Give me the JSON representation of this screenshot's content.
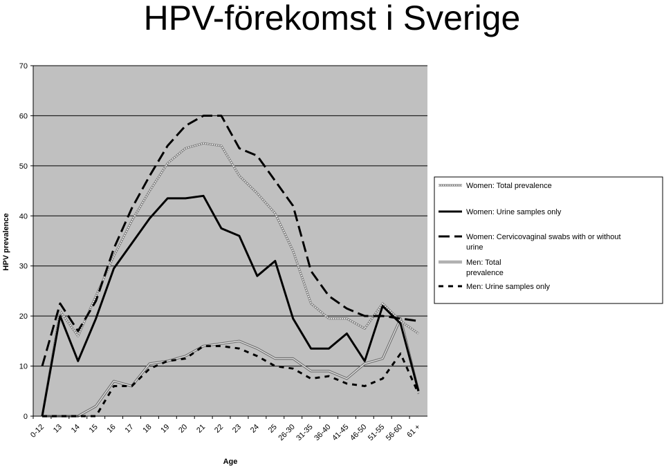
{
  "title": "HPV-förekomst i Sverige",
  "chart_data": {
    "type": "line",
    "xlabel": "Age",
    "ylabel": "HPV prevalence",
    "ylim": [
      0,
      70
    ],
    "yticks": [
      0,
      10,
      20,
      30,
      40,
      50,
      60,
      70
    ],
    "grid": true,
    "legend_position": "right",
    "background": "#c0c0c0",
    "categories": [
      "0-12",
      "13",
      "14",
      "15",
      "16",
      "17",
      "18",
      "19",
      "20",
      "21",
      "22",
      "23",
      "24",
      "25",
      "26-30",
      "31-35",
      "36-40",
      "41-45",
      "46-50",
      "51-55",
      "56-60",
      "61+"
    ],
    "category_labels": [
      "0-12",
      "13",
      "14",
      "15",
      "16",
      "17",
      "18",
      "19",
      "20",
      "21",
      "22",
      "23",
      "24",
      "25",
      "26-30",
      "31-35",
      "36-40",
      "41-45",
      "46-50",
      "51-55",
      "56-60",
      "61 +"
    ],
    "series": [
      {
        "name": "Women: Total prevalence",
        "legend_lines": [
          "Women: Total prevalence"
        ],
        "style": "dotted-white",
        "values": [
          0,
          21,
          16,
          24,
          32,
          39,
          45,
          50.5,
          53.5,
          54.5,
          54,
          48,
          44.5,
          40.5,
          33,
          22.5,
          19.5,
          19.5,
          17.5,
          22.5,
          19,
          16.5
        ]
      },
      {
        "name": "Women: Urine samples only",
        "legend_lines": [
          "Women: Urine samples only"
        ],
        "style": "solid-thick",
        "values": [
          0,
          20,
          11,
          19.5,
          29.5,
          34.5,
          39.5,
          43.5,
          43.5,
          44,
          37.5,
          36,
          28,
          31,
          19.5,
          13.5,
          13.5,
          16.5,
          11,
          22,
          18.5,
          5
        ]
      },
      {
        "name": "Women: Cervicovaginal swabs with or without urine",
        "legend_lines": [
          "Women: Cervicovaginal swabs with or without",
          "urine"
        ],
        "style": "long-dash",
        "values": [
          10,
          22.5,
          17,
          23,
          33.5,
          41.5,
          48,
          54,
          58,
          60,
          60,
          53.5,
          52,
          47,
          42,
          29,
          24,
          21.5,
          20,
          20,
          19.5,
          19
        ]
      },
      {
        "name": "Men: Total prevalence",
        "legend_lines": [
          "Men: Total",
          "prevalence"
        ],
        "style": "double-gray",
        "values": [
          0,
          0,
          0,
          2,
          7,
          6,
          10.5,
          11,
          12,
          14,
          14.5,
          15,
          13.5,
          11.5,
          11.5,
          9,
          9,
          7.5,
          10.5,
          11.5,
          19.5,
          5
        ]
      },
      {
        "name": "Men: Urine samples only",
        "legend_lines": [
          "Men: Urine samples only"
        ],
        "style": "short-dash",
        "values": [
          0,
          0,
          0,
          0,
          6,
          6,
          9.5,
          11,
          11.5,
          14,
          14,
          13.5,
          12,
          10,
          9.5,
          7.5,
          8,
          6.5,
          6,
          7.5,
          12.5,
          4.5
        ]
      }
    ]
  }
}
